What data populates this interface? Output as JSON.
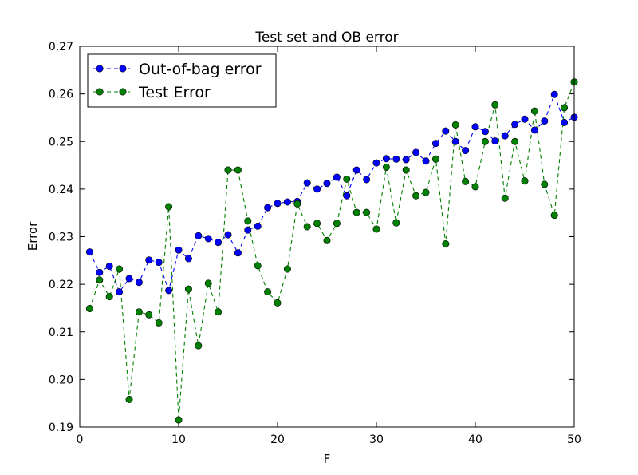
{
  "chart_data": {
    "type": "line",
    "title": "Test set and OB error",
    "xlabel": "F",
    "ylabel": "Error",
    "xlim": [
      0,
      50
    ],
    "ylim": [
      0.19,
      0.27
    ],
    "x_ticks": [
      "0",
      "10",
      "20",
      "30",
      "40",
      "50"
    ],
    "y_ticks": [
      "0.19",
      "0.20",
      "0.21",
      "0.22",
      "0.23",
      "0.24",
      "0.25",
      "0.26",
      "0.27"
    ],
    "grid": false,
    "legend_position": "top-left",
    "x": [
      1,
      2,
      3,
      4,
      5,
      6,
      7,
      8,
      9,
      10,
      11,
      12,
      13,
      14,
      15,
      16,
      17,
      18,
      19,
      20,
      21,
      22,
      23,
      24,
      25,
      26,
      27,
      28,
      29,
      30,
      31,
      32,
      33,
      34,
      35,
      36,
      37,
      38,
      39,
      40,
      41,
      42,
      43,
      44,
      45,
      46,
      47,
      48,
      49,
      50
    ],
    "series": [
      {
        "name": "Out-of-bag error",
        "color": "#0000ff",
        "line_style": "dashed",
        "marker": "circle",
        "values": [
          0.2268,
          0.2225,
          0.2238,
          0.2184,
          0.2212,
          0.2204,
          0.2251,
          0.2246,
          0.2187,
          0.2272,
          0.2254,
          0.2302,
          0.2296,
          0.2288,
          0.2304,
          0.2266,
          0.2314,
          0.2322,
          0.2361,
          0.237,
          0.2373,
          0.2374,
          0.2413,
          0.24,
          0.2412,
          0.2425,
          0.2386,
          0.244,
          0.242,
          0.2455,
          0.2464,
          0.2463,
          0.2462,
          0.2477,
          0.2459,
          0.2496,
          0.2522,
          0.25,
          0.2481,
          0.2531,
          0.2521,
          0.2501,
          0.2512,
          0.2536,
          0.2547,
          0.2524,
          0.2543,
          0.2599,
          0.254,
          0.2551
        ]
      },
      {
        "name": "Test Error",
        "color": "#008000",
        "line_style": "dashed",
        "marker": "circle",
        "values": [
          0.2149,
          0.2209,
          0.2174,
          0.2232,
          0.1958,
          0.2142,
          0.2136,
          0.2119,
          0.2363,
          0.1915,
          0.219,
          0.2071,
          0.2202,
          0.2142,
          0.244,
          0.244,
          0.2333,
          0.2239,
          0.2184,
          0.2161,
          0.2232,
          0.2369,
          0.2321,
          0.2328,
          0.2292,
          0.2328,
          0.2421,
          0.2351,
          0.2351,
          0.2316,
          0.2446,
          0.2329,
          0.244,
          0.2386,
          0.2393,
          0.2463,
          0.2285,
          0.2535,
          0.2416,
          0.2405,
          0.25,
          0.2577,
          0.2381,
          0.25,
          0.2417,
          0.2564,
          0.241,
          0.2345,
          0.2571,
          0.2625
        ]
      }
    ]
  }
}
